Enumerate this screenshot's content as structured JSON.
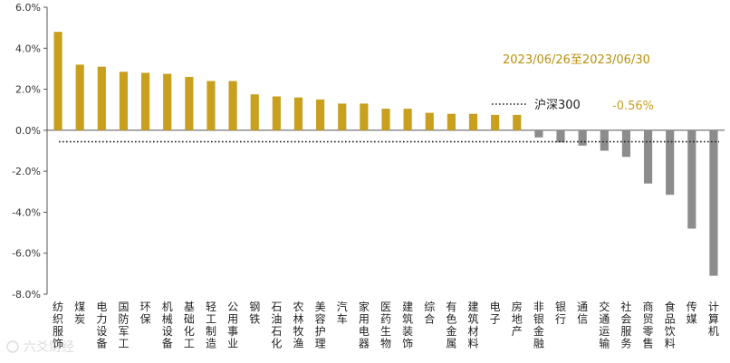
{
  "chart_data": {
    "type": "bar",
    "title": "",
    "date_range": "2023/06/26至2023/06/30",
    "ylabel": "",
    "xlabel": "",
    "ylim": [
      -8.0,
      6.0
    ],
    "y_ticks": [
      "6.0%",
      "4.0%",
      "2.0%",
      "0.0%",
      "-2.0%",
      "-4.0%",
      "-6.0%",
      "-8.0%"
    ],
    "grid": false,
    "categories": [
      "纺织服饰",
      "煤炭",
      "电力设备",
      "国防军工",
      "环保",
      "机械设备",
      "基础化工",
      "轻工制造",
      "公用事业",
      "钢铁",
      "石油石化",
      "农林牧渔",
      "美容护理",
      "汽车",
      "家用电器",
      "医药生物",
      "建筑装饰",
      "综合",
      "有色金属",
      "建筑材料",
      "电子",
      "房地产",
      "非银金融",
      "银行",
      "通信",
      "交通运输",
      "社会服务",
      "商贸零售",
      "食品饮料",
      "传媒",
      "计算机"
    ],
    "values": [
      4.8,
      3.2,
      3.1,
      2.85,
      2.8,
      2.75,
      2.6,
      2.4,
      2.4,
      1.75,
      1.65,
      1.6,
      1.5,
      1.3,
      1.3,
      1.05,
      1.05,
      0.85,
      0.8,
      0.8,
      0.75,
      0.75,
      -0.35,
      -0.6,
      -0.75,
      -1.0,
      -1.3,
      -2.6,
      -3.15,
      -4.8,
      -7.1
    ],
    "benchmark": {
      "name": "沪深300",
      "value": -0.56,
      "label": "-0.56%"
    },
    "colors": {
      "positive": "#C8A01E",
      "negative": "#8C8C8C",
      "benchmark_text": "#C8A01E",
      "date_text": "#B8900E"
    }
  },
  "watermark": "六爻财经"
}
